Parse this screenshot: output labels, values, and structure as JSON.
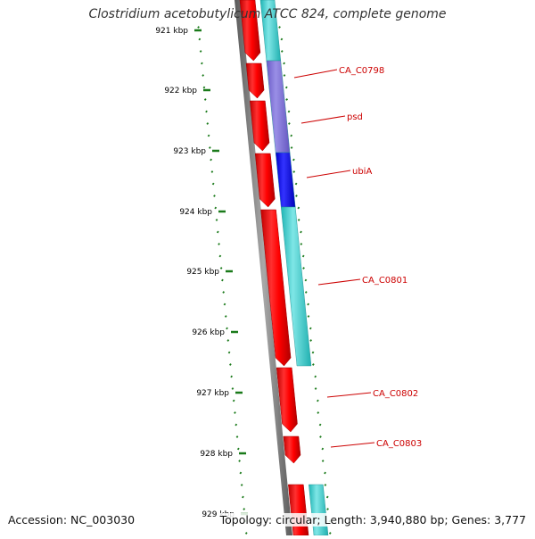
{
  "title": "Clostridium acetobutylicum ATCC 824, complete genome",
  "accession": "Accession: NC_003030",
  "topology": "Topology: circular; Length: 3,940,880 bp; Genes: 3,777",
  "ticks": [
    {
      "label": "921 kbp"
    },
    {
      "label": "922 kbp"
    },
    {
      "label": "923 kbp"
    },
    {
      "label": "924 kbp"
    },
    {
      "label": "925 kbp"
    },
    {
      "label": "926 kbp"
    },
    {
      "label": "927 kbp"
    },
    {
      "label": "928 kbp"
    },
    {
      "label": "929 kbp"
    }
  ],
  "gene_labels": [
    {
      "name": "CA_C0798"
    },
    {
      "name": "psd"
    },
    {
      "name": "ubiA"
    },
    {
      "name": "CA_C0801"
    },
    {
      "name": "CA_C0802"
    },
    {
      "name": "CA_C0803"
    }
  ],
  "colors": {
    "forward_gene": "#ff0000",
    "cds_default": "#33cccc",
    "cds_highlight_light": "#7b6fd6",
    "cds_highlight_dark": "#0000ee",
    "backbone": "#808080",
    "gc_plot": "#1a7a1a",
    "label": "#cc0000"
  }
}
